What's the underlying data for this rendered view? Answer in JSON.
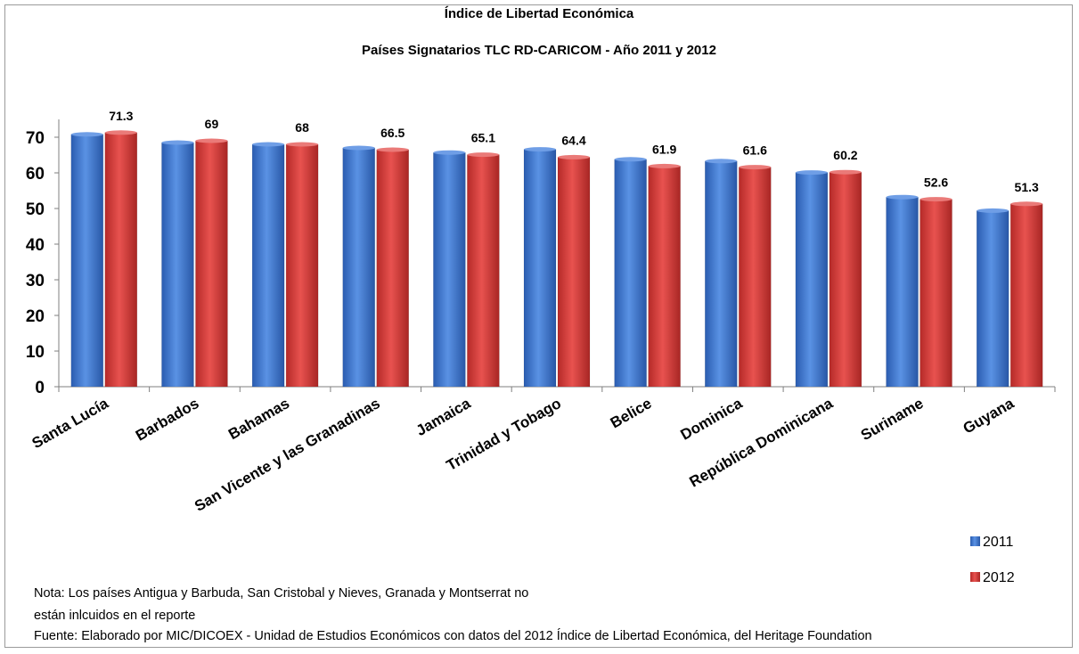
{
  "chart_data": {
    "type": "bar",
    "title": "Índice de Libertad Económica",
    "subtitle": "Países Signatarios TLC RD-CARICOM - Año 2011 y 2012",
    "categories": [
      "Santa Lucía",
      "Barbados",
      "Bahamas",
      "San Vicente y las Granadinas",
      "Jamaica",
      "Trinidad y Tobago",
      "Belice",
      "Dominica",
      "República Dominicana",
      "Suriname",
      "Guyana"
    ],
    "series": [
      {
        "name": "2011",
        "color": "#3a74cf",
        "values": [
          70.8,
          68.5,
          68.0,
          67.0,
          65.7,
          66.6,
          63.8,
          63.3,
          60.1,
          53.2,
          49.4
        ]
      },
      {
        "name": "2012",
        "color": "#d23c3a",
        "values": [
          71.3,
          69,
          68,
          66.5,
          65.1,
          64.4,
          61.9,
          61.6,
          60.2,
          52.6,
          51.3
        ]
      }
    ],
    "data_labels": [
      "71.3",
      "69",
      "68",
      "66.5",
      "65.1",
      "64.4",
      "61.9",
      "61.6",
      "60.2",
      "52.6",
      "51.3"
    ],
    "y_ticks": [
      "0",
      "10",
      "20",
      "30",
      "40",
      "50",
      "60",
      "70"
    ],
    "ylim": [
      0,
      75
    ],
    "grid": false,
    "legend_position": "bottom-right"
  },
  "notes": {
    "line1": "Nota: Los países Antigua y Barbuda, San Cristobal y Nieves, Granada y Montserrat no",
    "line2": "están inlcuidos en el reporte",
    "source": "Fuente: Elaborado por  MIC/DICOEX - Unidad de Estudios Económicos con datos del 2012  Índice de Libertad Económica, del Heritage Foundation"
  }
}
